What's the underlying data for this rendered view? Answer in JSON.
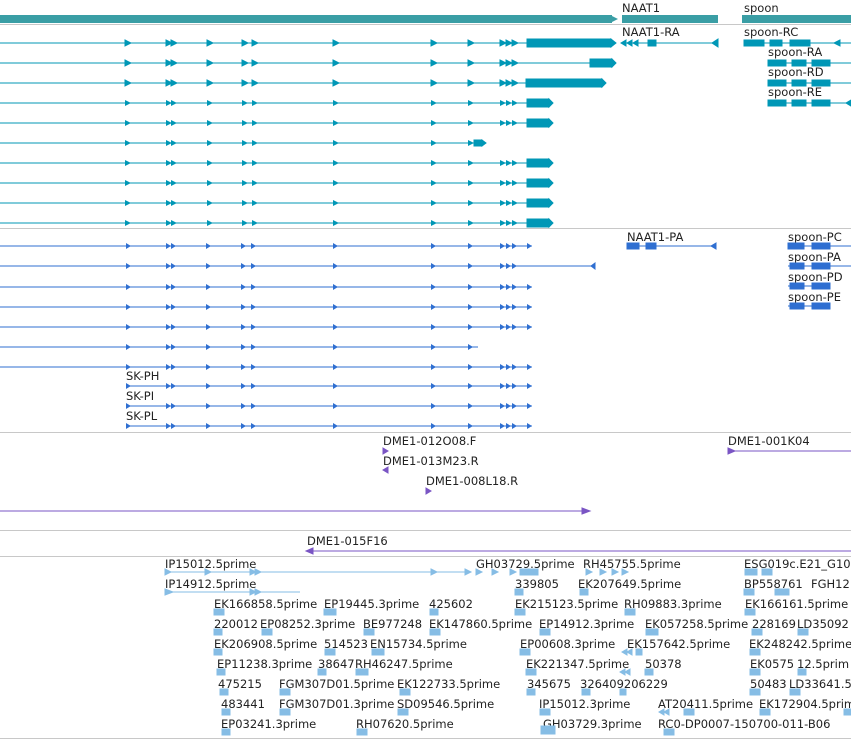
{
  "colors": {
    "gene": "#3a9ea5",
    "transcript": "#0097b6",
    "protein": "#2f6fd1",
    "clone": "#7a55c4",
    "est": "#86bde5",
    "separator": "#c8c8c8"
  },
  "gene_track": {
    "labels": [
      "NAAT1",
      "spoon"
    ]
  },
  "transcript_track": {
    "labels": [
      "NAAT1-RA",
      "spoon-RC",
      "spoon-RA",
      "spoon-RD",
      "spoon-RE"
    ]
  },
  "protein_track": {
    "labels": [
      "NAAT1-PA",
      "spoon-PC",
      "spoon-PA",
      "spoon-PD",
      "spoon-PE",
      "SK-PH",
      "SK-PI",
      "SK-PL"
    ]
  },
  "clone_track": {
    "labels": [
      "DME1-012O08.F",
      "DME1-013M23.R",
      "DME1-008L18.R",
      "DME1-001K04",
      "DME1-015F16"
    ]
  },
  "est_track": {
    "labels": [
      "IP15012.5prime",
      "IP14912.5prime",
      "EK166858.5prime",
      "EP19445.3prime",
      "425602",
      "220012",
      "EP08252.3prime",
      "BE977248",
      "EK147860.5prime",
      "EK206908.5prime",
      "514523",
      "EN15734.5prime",
      "EP11238.3prime",
      "38647",
      "RH46247.5prime",
      "475215",
      "FGM307D01.5prime",
      "EK122733.5prime",
      "483441",
      "FGM307D01.3prime",
      "SD09546.5prime",
      "EP03241.3prime",
      "RH07620.5prime",
      "GH03729.5prime",
      "RH45755.5prime",
      "339805",
      "EK207649.5prime",
      "EK215123.5prime",
      "RH09883.3prime",
      "EP14912.3prime",
      "EK057258.5prime",
      "EP00608.3prime",
      "EK157642.5prime",
      "EK221347.5prime",
      "50378",
      "345675",
      "326409206229",
      "IP15012.3prime",
      "AT20411.5prime",
      "GH03729.3prime",
      "RC0-DP0007-150700-011-B06",
      "ESG019c.E21_G10",
      "BP558761",
      "FGH12",
      "EK166161.5prime",
      "228169",
      "LD35092",
      "EK248242.5prime",
      "EK0575",
      "12.5prim",
      "50483",
      "LD33641.5",
      "EK172904.5prime"
    ]
  }
}
